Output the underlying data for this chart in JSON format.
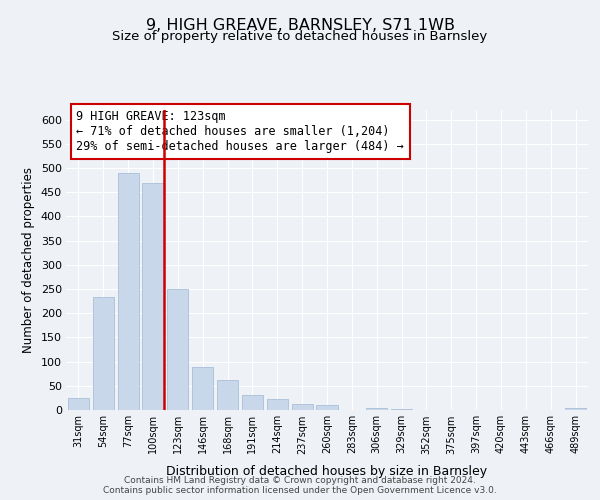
{
  "title": "9, HIGH GREAVE, BARNSLEY, S71 1WB",
  "subtitle": "Size of property relative to detached houses in Barnsley",
  "xlabel": "Distribution of detached houses by size in Barnsley",
  "ylabel": "Number of detached properties",
  "bin_labels": [
    "31sqm",
    "54sqm",
    "77sqm",
    "100sqm",
    "123sqm",
    "146sqm",
    "168sqm",
    "191sqm",
    "214sqm",
    "237sqm",
    "260sqm",
    "283sqm",
    "306sqm",
    "329sqm",
    "352sqm",
    "375sqm",
    "397sqm",
    "420sqm",
    "443sqm",
    "466sqm",
    "489sqm"
  ],
  "bar_heights": [
    25,
    233,
    490,
    470,
    250,
    88,
    63,
    30,
    22,
    13,
    10,
    0,
    5,
    2,
    1,
    1,
    0,
    1,
    0,
    0,
    5
  ],
  "bar_color": "#c8d8ea",
  "bar_edge_color": "#a8c0d8",
  "vline_color": "#cc0000",
  "annotation_title": "9 HIGH GREAVE: 123sqm",
  "annotation_line1": "← 71% of detached houses are smaller (1,204)",
  "annotation_line2": "29% of semi-detached houses are larger (484) →",
  "annotation_box_color": "#ffffff",
  "annotation_box_edge": "#cc0000",
  "ylim": [
    0,
    620
  ],
  "yticks": [
    0,
    50,
    100,
    150,
    200,
    250,
    300,
    350,
    400,
    450,
    500,
    550,
    600
  ],
  "footer_line1": "Contains HM Land Registry data © Crown copyright and database right 2024.",
  "footer_line2": "Contains public sector information licensed under the Open Government Licence v3.0.",
  "background_color": "#eef2f7",
  "grid_color": "#ffffff"
}
